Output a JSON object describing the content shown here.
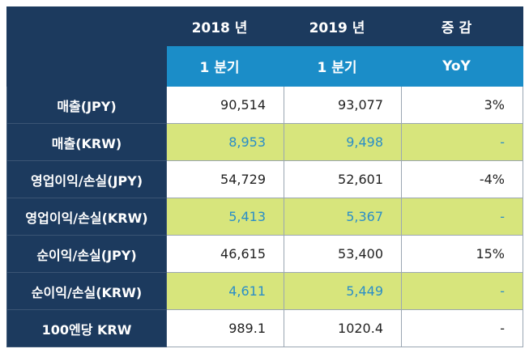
{
  "table": {
    "header": [
      [
        "",
        "2018 년",
        "2019 년",
        "증 감"
      ],
      [
        "",
        "1 분기",
        "1 분기",
        "YoY"
      ]
    ],
    "rows": [
      {
        "label": "매출(JPY)",
        "cells": [
          "90,514",
          "93,077",
          "3%"
        ],
        "highlight": false
      },
      {
        "label": "매출(KRW)",
        "cells": [
          "8,953",
          "9,498",
          "-"
        ],
        "highlight": true
      },
      {
        "label": "영업이익/손실(JPY)",
        "cells": [
          "54,729",
          "52,601",
          "-4%"
        ],
        "highlight": false
      },
      {
        "label": "영업이익/손실(KRW)",
        "cells": [
          "5,413",
          "5,367",
          "-"
        ],
        "highlight": true
      },
      {
        "label": "순이익/손실(JPY)",
        "cells": [
          "46,615",
          "53,400",
          "15%"
        ],
        "highlight": false
      },
      {
        "label": "순이익/손실(KRW)",
        "cells": [
          "4,611",
          "5,449",
          "-"
        ],
        "highlight": true
      },
      {
        "label": "100엔당 KRW",
        "cells": [
          "989.1",
          "1020.4",
          "-"
        ],
        "highlight": false
      }
    ]
  }
}
